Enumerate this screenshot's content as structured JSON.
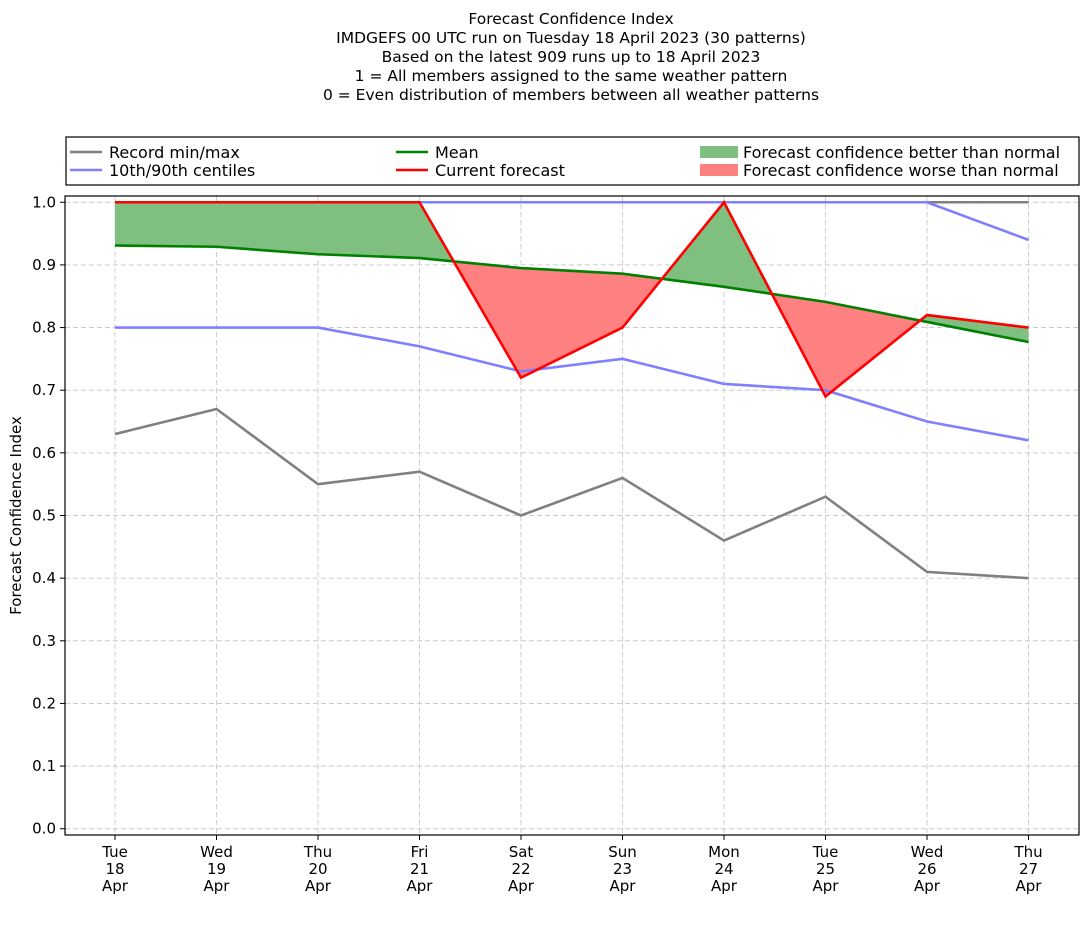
{
  "chart_data": {
    "type": "line",
    "title_lines": [
      "Forecast Confidence Index",
      "IMDGEFS 00 UTC run on Tuesday 18 April 2023 (30 patterns)",
      "Based on the latest 909 runs up to 18 April 2023",
      "1 = All members assigned to the same weather pattern",
      "0 = Even distribution of members between all weather patterns"
    ],
    "ylabel": "Forecast Confidence Index",
    "xlabel": "",
    "ylim": [
      -0.01,
      1.01
    ],
    "yticks": [
      0.0,
      0.1,
      0.2,
      0.3,
      0.4,
      0.5,
      0.6,
      0.7,
      0.8,
      0.9,
      1.0
    ],
    "ytick_labels": [
      "0.0",
      "0.1",
      "0.2",
      "0.3",
      "0.4",
      "0.5",
      "0.6",
      "0.7",
      "0.8",
      "0.9",
      "1.0"
    ],
    "grid": true,
    "legend_position": "top",
    "categories": [
      {
        "dow": "Tue",
        "day": "18",
        "mon": "Apr"
      },
      {
        "dow": "Wed",
        "day": "19",
        "mon": "Apr"
      },
      {
        "dow": "Thu",
        "day": "20",
        "mon": "Apr"
      },
      {
        "dow": "Fri",
        "day": "21",
        "mon": "Apr"
      },
      {
        "dow": "Sat",
        "day": "22",
        "mon": "Apr"
      },
      {
        "dow": "Sun",
        "day": "23",
        "mon": "Apr"
      },
      {
        "dow": "Mon",
        "day": "24",
        "mon": "Apr"
      },
      {
        "dow": "Tue",
        "day": "25",
        "mon": "Apr"
      },
      {
        "dow": "Wed",
        "day": "26",
        "mon": "Apr"
      },
      {
        "dow": "Thu",
        "day": "27",
        "mon": "Apr"
      }
    ],
    "series": [
      {
        "key": "record_min",
        "values": [
          0.63,
          0.67,
          0.55,
          0.57,
          0.5,
          0.56,
          0.46,
          0.53,
          0.41,
          0.4
        ],
        "color": "#808080"
      },
      {
        "key": "record_max",
        "values": [
          1.0,
          1.0,
          1.0,
          1.0,
          1.0,
          1.0,
          1.0,
          1.0,
          1.0,
          1.0
        ],
        "color": "#808080"
      },
      {
        "key": "p10",
        "values": [
          0.8,
          0.8,
          0.8,
          0.77,
          0.73,
          0.75,
          0.71,
          0.7,
          0.65,
          0.62
        ],
        "color": "#8080ff"
      },
      {
        "key": "p90",
        "values": [
          1.0,
          1.0,
          1.0,
          1.0,
          1.0,
          1.0,
          1.0,
          1.0,
          1.0,
          0.94
        ],
        "color": "#8080ff"
      },
      {
        "key": "mean",
        "values": [
          0.931,
          0.929,
          0.917,
          0.911,
          0.895,
          0.886,
          0.865,
          0.841,
          0.809,
          0.777
        ],
        "color": "#008000"
      },
      {
        "key": "current",
        "values": [
          1.0,
          1.0,
          1.0,
          1.0,
          0.72,
          0.8,
          1.0,
          0.69,
          0.82,
          0.8
        ],
        "color": "#ff0000"
      }
    ],
    "fill_better_color": "#7fbf7f",
    "fill_worse_color": "#ff8080",
    "legend": [
      {
        "label": "Record min/max",
        "kind": "line",
        "color": "#808080"
      },
      {
        "label": "Mean",
        "kind": "line",
        "color": "#008000"
      },
      {
        "label": "Forecast confidence better than normal",
        "kind": "patch",
        "color": "#7fbf7f"
      },
      {
        "label": "10th/90th centiles",
        "kind": "line",
        "color": "#8080ff"
      },
      {
        "label": "Current forecast",
        "kind": "line",
        "color": "#ff0000"
      },
      {
        "label": "Forecast confidence worse than normal",
        "kind": "patch",
        "color": "#ff8080"
      }
    ]
  }
}
